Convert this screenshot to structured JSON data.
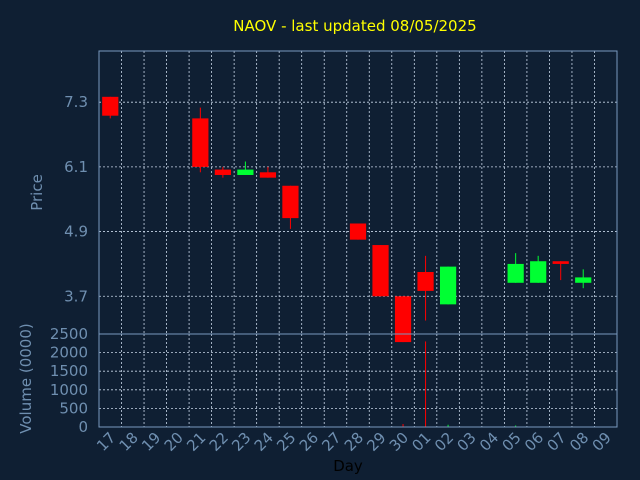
{
  "chart_data": {
    "type": "candlestick",
    "title": "NAOV - last updated 08/05/2025",
    "xlabel": "Day",
    "colors": {
      "background": "#0f1f33",
      "title": "#ffff00",
      "axis_text": "#6f8fb0",
      "frame": "#7a9abf",
      "grid": "#c8d6e8",
      "up": "#00ff33",
      "down": "#ff0000"
    },
    "price_panel": {
      "ylabel": "Price",
      "ylim": [
        3.0,
        8.25
      ],
      "yticks": [
        3.7,
        4.9,
        6.1,
        7.3
      ],
      "ytick_labels": [
        "3.7",
        "4.9",
        "6.1",
        "7.3"
      ]
    },
    "volume_panel": {
      "ylabel": "Volume (0000)",
      "ylim": [
        0,
        2500
      ],
      "yticks": [
        0,
        500,
        1000,
        1500,
        2000,
        2500
      ],
      "ytick_labels": [
        "0",
        "500",
        "1000",
        "1500",
        "2000",
        "2500"
      ]
    },
    "x_tick_labels": [
      "17",
      "18",
      "19",
      "20",
      "21",
      "22",
      "23",
      "24",
      "25",
      "26",
      "27",
      "28",
      "29",
      "30",
      "01",
      "02",
      "03",
      "04",
      "05",
      "06",
      "07",
      "08",
      "09"
    ],
    "candles": [
      {
        "day": "17",
        "open": 7.4,
        "high": 7.4,
        "low": 7.0,
        "close": 7.05,
        "volume": 0
      },
      {
        "day": "21",
        "open": 7.0,
        "high": 7.2,
        "low": 6.0,
        "close": 6.1,
        "volume": 0
      },
      {
        "day": "22",
        "open": 6.05,
        "high": 6.1,
        "low": 5.9,
        "close": 5.95,
        "volume": 0
      },
      {
        "day": "23",
        "open": 5.95,
        "high": 6.2,
        "low": 5.95,
        "close": 6.05,
        "volume": 0
      },
      {
        "day": "24",
        "open": 6.0,
        "high": 6.1,
        "low": 5.9,
        "close": 5.9,
        "volume": 0
      },
      {
        "day": "25",
        "open": 5.75,
        "high": 5.75,
        "low": 4.95,
        "close": 5.15,
        "volume": 0
      },
      {
        "day": "28",
        "open": 5.05,
        "high": 5.05,
        "low": 4.75,
        "close": 4.75,
        "volume": 0
      },
      {
        "day": "29",
        "open": 4.65,
        "high": 4.65,
        "low": 3.7,
        "close": 3.7,
        "volume": 0
      },
      {
        "day": "30",
        "open": 3.7,
        "high": 3.7,
        "low": 2.85,
        "close": 2.85,
        "volume": 80
      },
      {
        "day": "01",
        "open": 4.15,
        "high": 4.45,
        "low": 3.25,
        "close": 3.8,
        "volume": 2300
      },
      {
        "day": "02",
        "open": 3.55,
        "high": 4.25,
        "low": 3.55,
        "close": 4.25,
        "volume": 60
      },
      {
        "day": "05",
        "open": 3.95,
        "high": 4.5,
        "low": 3.95,
        "close": 4.3,
        "volume": 40
      },
      {
        "day": "06",
        "open": 3.95,
        "high": 4.45,
        "low": 3.95,
        "close": 4.35,
        "volume": 0
      },
      {
        "day": "07",
        "open": 4.35,
        "high": 4.35,
        "low": 4.0,
        "close": 4.3,
        "volume": 0
      },
      {
        "day": "08",
        "open": 3.95,
        "high": 4.2,
        "low": 3.85,
        "close": 4.05,
        "volume": 0
      }
    ]
  }
}
